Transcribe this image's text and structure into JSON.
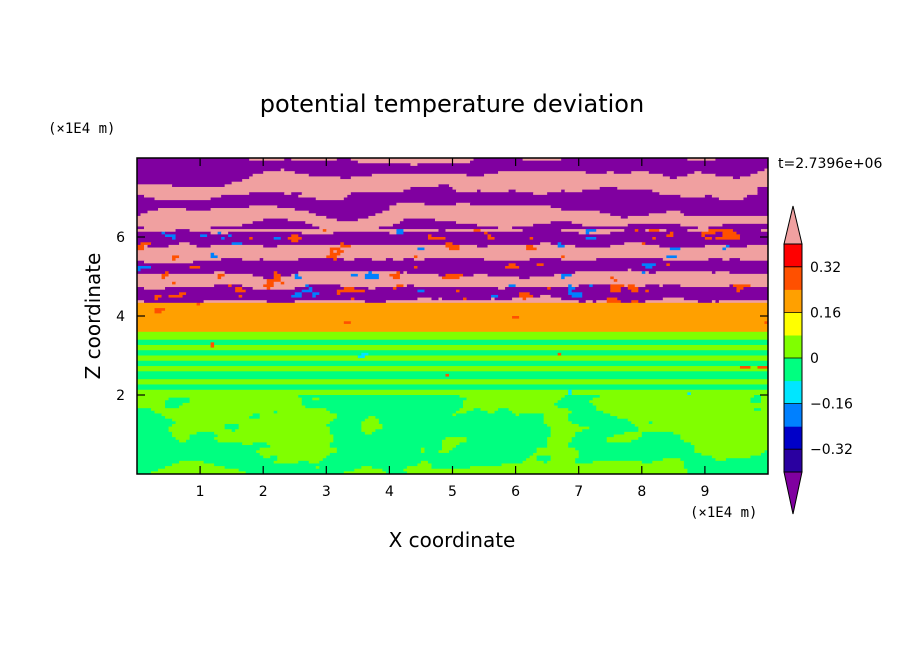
{
  "chart_data": {
    "type": "heatmap",
    "title": "potential temperature deviation",
    "xlabel": "X coordinate",
    "ylabel": "Z coordinate",
    "x_unit": "(×1E4 m)",
    "y_unit": "(×1E4 m)",
    "time_label": "t=2.7396e+06",
    "xlim": [
      0,
      10
    ],
    "ylim": [
      0,
      8
    ],
    "x_ticks": [
      1,
      2,
      3,
      4,
      5,
      6,
      7,
      8,
      9
    ],
    "y_ticks": [
      2,
      4,
      6
    ],
    "x_tick_labels": [
      "1",
      "2",
      "3",
      "4",
      "5",
      "6",
      "7",
      "8",
      "9"
    ],
    "y_tick_labels": [
      "2",
      "4",
      "6"
    ],
    "colorbar": {
      "levels": [
        -0.4,
        -0.32,
        -0.24,
        -0.16,
        -0.08,
        0,
        0.08,
        0.16,
        0.24,
        0.32,
        0.4
      ],
      "tick_values": [
        0.32,
        0.16,
        0,
        -0.16,
        -0.32
      ],
      "tick_labels": [
        "0.32",
        "0.16",
        "0",
        "−0.16",
        "−0.32"
      ],
      "colors": [
        "#5a00a0",
        "#2a00a0",
        "#0000c8",
        "#0080ff",
        "#00e6ff",
        "#00ff80",
        "#80ff00",
        "#ffff00",
        "#ffa000",
        "#ff5000",
        "#ff0000",
        "#f0a0a0"
      ],
      "under_color": "#8000a0",
      "over_color": "#f0a0a0",
      "extend": "both"
    },
    "layers": [
      {
        "z_range": [
          6.2,
          8.0
        ],
        "description": "alternating",
        "values": [
          -0.44,
          0.44
        ]
      },
      {
        "z_range": [
          4.3,
          6.2
        ],
        "description": "mixed",
        "values": [
          -0.44,
          0.44,
          0.2,
          -0.2
        ]
      },
      {
        "z_range": [
          3.6,
          4.3
        ],
        "description": "yellow band",
        "values": [
          0.16
        ]
      },
      {
        "z_range": [
          2.0,
          3.6
        ],
        "description": "green bands",
        "values": [
          0.0,
          0.08
        ]
      },
      {
        "z_range": [
          0.0,
          2.0
        ],
        "description": "green patches",
        "values": [
          0.0,
          0.08
        ]
      }
    ]
  }
}
